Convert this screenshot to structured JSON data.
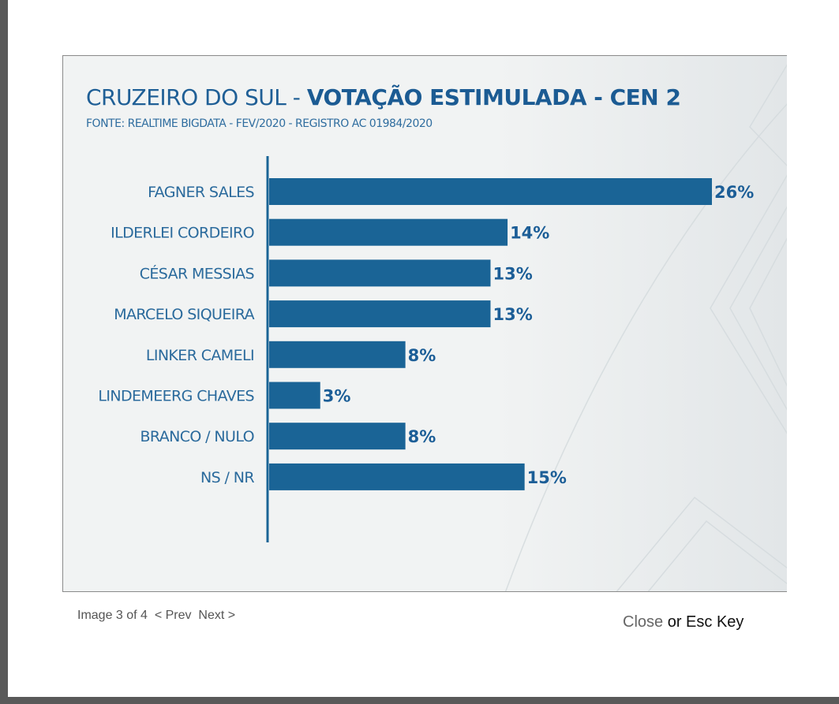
{
  "footer": {
    "counter": "Image 3 of 4",
    "prev": "< Prev",
    "next": "Next >",
    "close": "Close",
    "esc": "or Esc Key"
  },
  "colors": {
    "bar": "#1a6496",
    "axis": "#1a6496",
    "background": "#f1f3f3"
  },
  "chart_data": {
    "type": "bar",
    "orientation": "horizontal",
    "title": "CRUZEIRO DO SUL - ",
    "title_bold": "VOTAÇÃO ESTIMULADA - CEN 2",
    "subtitle": "FONTE: REALTIME BIGDATA - FEV/2020 - REGISTRO AC 01984/2020",
    "categories": [
      "FAGNER SALES",
      "ILDERLEI CORDEIRO",
      "CÉSAR MESSIAS",
      "MARCELO SIQUEIRA",
      "LINKER CAMELI",
      "LINDEMEERG CHAVES",
      "BRANCO / NULO",
      "NS / NR"
    ],
    "values": [
      26,
      14,
      13,
      13,
      8,
      3,
      8,
      15
    ],
    "value_labels": [
      "26%",
      "14%",
      "13%",
      "13%",
      "8%",
      "3%",
      "8%",
      "15%"
    ],
    "xlim": [
      0,
      26
    ],
    "grid": false,
    "legend": "none"
  }
}
